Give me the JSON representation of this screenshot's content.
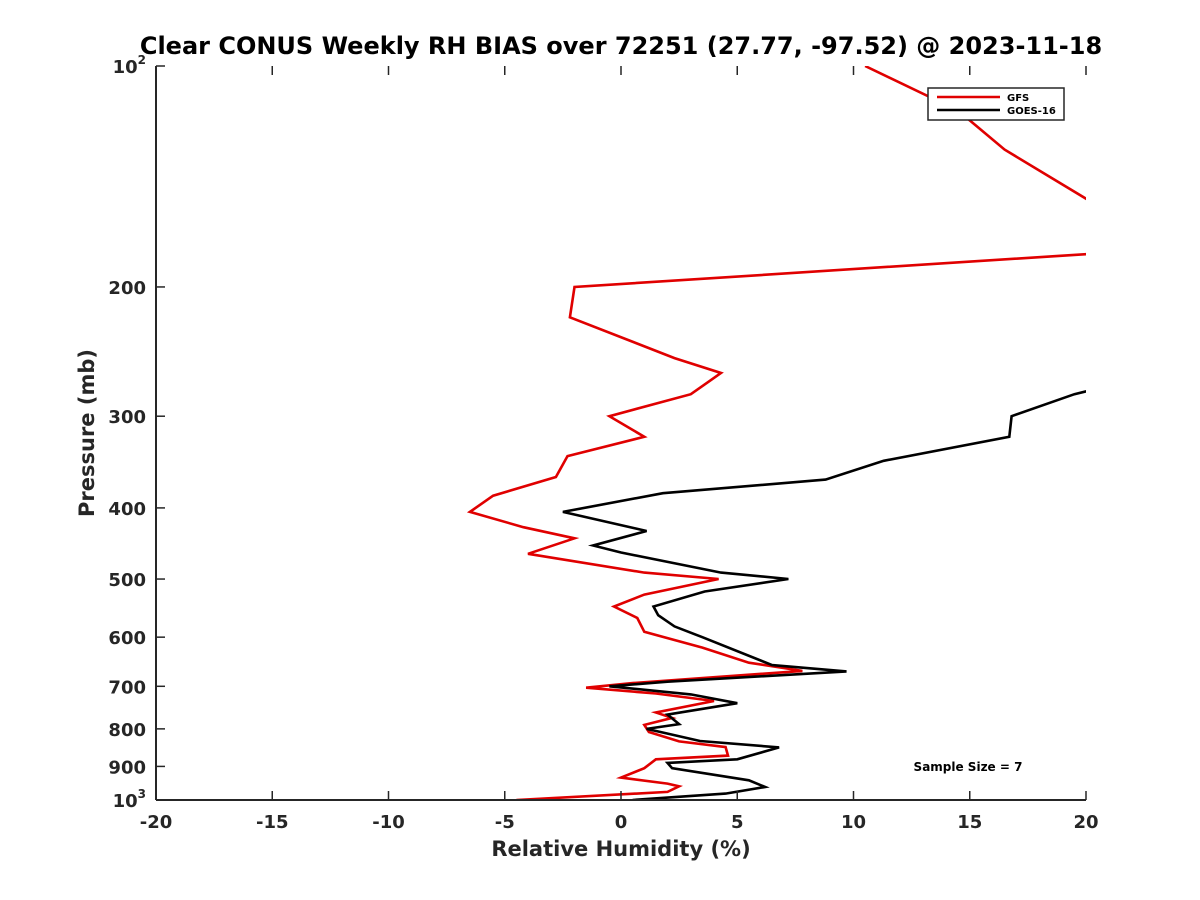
{
  "chart_data": {
    "type": "line",
    "title": "Clear CONUS Weekly RH BIAS over 72251 (27.77, -97.52) @ 2023-11-18",
    "xlabel": "Relative Humidity (%)",
    "ylabel": "Pressure (mb)",
    "xlim": [
      -20,
      20
    ],
    "ylim": [
      100,
      1000
    ],
    "y_scale": "log",
    "y_reversed": true,
    "grid": false,
    "x_ticks": [
      -20,
      -15,
      -10,
      -5,
      0,
      5,
      10,
      15,
      20
    ],
    "x_tick_labels": [
      "-20",
      "-15",
      "-10",
      "-5",
      "0",
      "5",
      "10",
      "15",
      "20"
    ],
    "y_ticks": [
      {
        "value": 100,
        "base": "10",
        "exp": "2"
      },
      {
        "value": 200,
        "label": "200"
      },
      {
        "value": 300,
        "label": "300"
      },
      {
        "value": 400,
        "label": "400"
      },
      {
        "value": 500,
        "label": "500"
      },
      {
        "value": 600,
        "label": "600"
      },
      {
        "value": 700,
        "label": "700"
      },
      {
        "value": 800,
        "label": "800"
      },
      {
        "value": 900,
        "label": "900"
      },
      {
        "value": 1000,
        "base": "10",
        "exp": "3"
      }
    ],
    "legend_position": "top-right",
    "annotation": "Sample Size = 7",
    "series": [
      {
        "name": "GFS",
        "color": "#e00000",
        "points": [
          [
            10.5,
            100
          ],
          [
            14.5,
            115
          ],
          [
            16.5,
            130
          ],
          [
            20.5,
            155
          ],
          [
            20.5,
            180
          ],
          [
            -2.0,
            200
          ],
          [
            -2.2,
            220
          ],
          [
            2.3,
            250
          ],
          [
            4.3,
            262
          ],
          [
            3.0,
            280
          ],
          [
            -0.5,
            300
          ],
          [
            1.0,
            320
          ],
          [
            -2.3,
            340
          ],
          [
            -2.8,
            363
          ],
          [
            -5.5,
            385
          ],
          [
            -6.5,
            405
          ],
          [
            -4.2,
            425
          ],
          [
            -2.0,
            440
          ],
          [
            -4.0,
            462
          ],
          [
            1.0,
            490
          ],
          [
            4.2,
            500
          ],
          [
            1.0,
            525
          ],
          [
            -0.3,
            545
          ],
          [
            0.7,
            565
          ],
          [
            1.0,
            590
          ],
          [
            3.5,
            620
          ],
          [
            5.5,
            650
          ],
          [
            7.8,
            667
          ],
          [
            0.5,
            693
          ],
          [
            -1.5,
            703
          ],
          [
            1.5,
            716
          ],
          [
            4.0,
            733
          ],
          [
            1.5,
            760
          ],
          [
            2.2,
            773
          ],
          [
            1.0,
            790
          ],
          [
            1.2,
            808
          ],
          [
            2.5,
            832
          ],
          [
            4.5,
            847
          ],
          [
            4.6,
            870
          ],
          [
            1.5,
            880
          ],
          [
            1.0,
            905
          ],
          [
            0.0,
            932
          ],
          [
            2.0,
            950
          ],
          [
            2.5,
            958
          ],
          [
            2.0,
            975
          ],
          [
            -4.5,
            1000
          ]
        ]
      },
      {
        "name": "GOES-16",
        "color": "#000000",
        "points": [
          [
            20.5,
            275
          ],
          [
            19.5,
            280
          ],
          [
            16.8,
            300
          ],
          [
            16.7,
            320
          ],
          [
            11.3,
            345
          ],
          [
            8.8,
            366
          ],
          [
            1.8,
            382
          ],
          [
            -2.5,
            405
          ],
          [
            1.1,
            430
          ],
          [
            -1.2,
            450
          ],
          [
            0.0,
            460
          ],
          [
            4.3,
            490
          ],
          [
            7.2,
            500
          ],
          [
            3.6,
            520
          ],
          [
            1.4,
            545
          ],
          [
            1.6,
            560
          ],
          [
            2.3,
            580
          ],
          [
            3.5,
            600
          ],
          [
            6.5,
            655
          ],
          [
            9.7,
            668
          ],
          [
            2.0,
            690
          ],
          [
            -0.5,
            700
          ],
          [
            3.0,
            718
          ],
          [
            5.0,
            738
          ],
          [
            2.0,
            765
          ],
          [
            2.5,
            788
          ],
          [
            1.1,
            800
          ],
          [
            1.7,
            808
          ],
          [
            3.4,
            831
          ],
          [
            6.8,
            848
          ],
          [
            5.0,
            880
          ],
          [
            2.0,
            890
          ],
          [
            2.2,
            905
          ],
          [
            5.5,
            940
          ],
          [
            6.2,
            960
          ],
          [
            4.5,
            980
          ],
          [
            0.5,
            1000
          ]
        ]
      }
    ]
  }
}
